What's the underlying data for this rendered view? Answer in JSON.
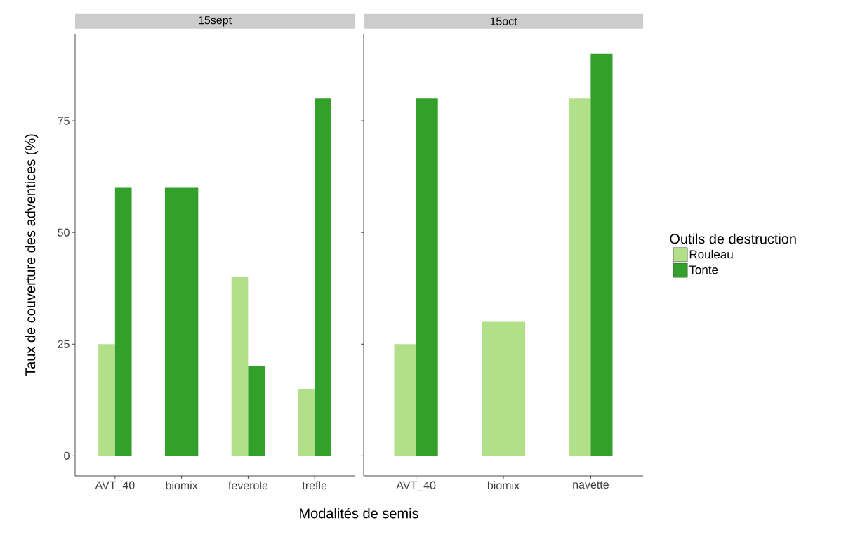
{
  "chart_data": [
    {
      "type": "bar",
      "title": "15sept",
      "xlabel": "Modalités de semis",
      "ylabel": "Taux de couverture des adventices (%)",
      "categories": [
        "AVT_40",
        "biomix",
        "feverole",
        "trefle"
      ],
      "ylim": [
        -4.5,
        94.5
      ],
      "yticks": [
        0,
        25,
        50,
        75
      ],
      "series": [
        {
          "color": "#b2df8a",
          "values": [
            25,
            null,
            40,
            15
          ]
        },
        {
          "color": "#33a02c",
          "values": [
            60,
            60,
            20,
            80
          ]
        }
      ]
    },
    {
      "type": "bar",
      "title": "15oct",
      "categories": [
        "AVT_40",
        "biomix",
        "navette"
      ],
      "ylim": [
        -4.5,
        94.5
      ],
      "yticks": [
        0,
        25,
        50,
        75
      ],
      "tick_labels": "x",
      "legend": "right",
      "legend_title": "Outils de destruction",
      "series": [
        {
          "name": "Rouleau",
          "color": "#b2df8a",
          "values": [
            25,
            30,
            80
          ]
        },
        {
          "name": "Tonte",
          "color": "#33a02c",
          "values": [
            80,
            null,
            90
          ]
        }
      ]
    }
  ]
}
